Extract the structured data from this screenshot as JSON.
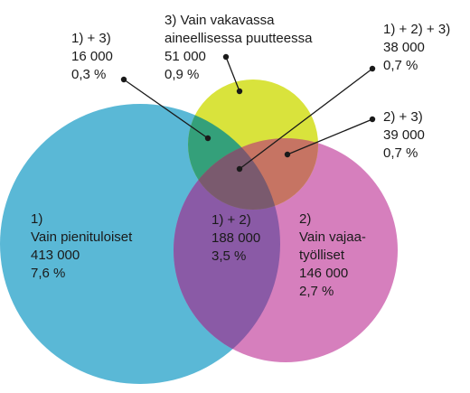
{
  "colors": {
    "set1": "#5ab8d6",
    "set2": "#d67fbd",
    "set3": "#d9e33c",
    "overlap_12": "#8a5aa6",
    "overlap_13": "#34a07a",
    "overlap_23": "#c67463",
    "overlap_123": "#7a5a6e",
    "leader": "#1a1a1a"
  },
  "sets": {
    "s1": {
      "lines": [
        "1)",
        "Vain pienituloiset",
        "413 000",
        "7,6 %"
      ]
    },
    "s2": {
      "lines": [
        "2)",
        "Vain vajaa-",
        "työlliset",
        "146 000",
        "2,7 %"
      ]
    },
    "s3": {
      "lines": [
        "3) Vain vakavassa",
        "aineellisessa puutteessa",
        "51 000",
        "0,9 %"
      ]
    }
  },
  "overlaps": {
    "o12": {
      "lines": [
        "1) + 2)",
        "188 000",
        "3,5 %"
      ]
    },
    "o13": {
      "lines": [
        "1) + 3)",
        "16 000",
        "0,3 %"
      ]
    },
    "o23": {
      "lines": [
        "2) + 3)",
        "39 000",
        "0,7 %"
      ]
    },
    "o123": {
      "lines": [
        "1) + 2) + 3)",
        "38 000",
        "0,7 %"
      ]
    }
  }
}
